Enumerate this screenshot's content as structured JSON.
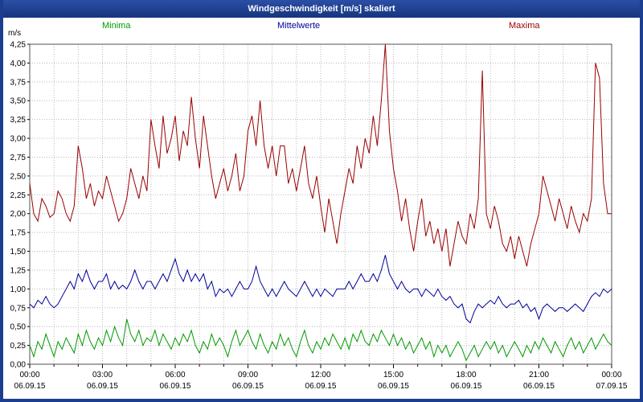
{
  "window": {
    "title": "Windgeschwindigkeit [m/s] skaliert"
  },
  "colors": {
    "titlebar": "#1c3e91",
    "border": "#1c3e91",
    "grid": "#b8b8b8",
    "plot_border": "#505050",
    "axis_text": "#000000",
    "maxima": "#990000",
    "mittelwerte": "#000099",
    "minima": "#009900"
  },
  "chart_data": {
    "type": "line",
    "title": "Windgeschwindigkeit [m/s] skaliert",
    "ylabel": "m/s",
    "ylim": [
      0,
      4.25
    ],
    "ytick_step": 0.25,
    "ytick_labels": [
      "0,00",
      "0,25",
      "0,50",
      "0,75",
      "1,00",
      "1,25",
      "1,50",
      "1,75",
      "2,00",
      "2,25",
      "2,50",
      "2,75",
      "3,00",
      "3,25",
      "3,50",
      "3,75",
      "4,00",
      "4,25"
    ],
    "x_hours": 24,
    "xtick_labels": [
      "00:00",
      "03:00",
      "06:00",
      "09:00",
      "12:00",
      "15:00",
      "18:00",
      "21:00",
      "00:00"
    ],
    "xdate_labels": [
      "06.09.15",
      "06.09.15",
      "06.09.15",
      "06.09.15",
      "06.09.15",
      "06.09.15",
      "06.09.15",
      "06.09.15",
      "07.09.15"
    ],
    "grid": true,
    "legend_position": "top",
    "legend": [
      {
        "name": "Minima",
        "color": "#009900"
      },
      {
        "name": "Mittelwerte",
        "color": "#000099"
      },
      {
        "name": "Maxima",
        "color": "#990000"
      }
    ],
    "series": [
      {
        "name": "Maxima",
        "color": "#990000",
        "values": [
          2.4,
          2.0,
          1.9,
          2.2,
          2.1,
          1.95,
          2.0,
          2.3,
          2.2,
          2.0,
          1.9,
          2.1,
          2.9,
          2.6,
          2.2,
          2.4,
          2.1,
          2.3,
          2.2,
          2.5,
          2.3,
          2.1,
          1.9,
          2.0,
          2.2,
          2.6,
          2.4,
          2.2,
          2.5,
          2.3,
          3.25,
          2.9,
          2.6,
          3.3,
          2.8,
          3.0,
          3.3,
          2.7,
          3.1,
          2.9,
          3.55,
          3.0,
          2.6,
          3.3,
          2.9,
          2.5,
          2.2,
          2.4,
          2.6,
          2.3,
          2.5,
          2.8,
          2.3,
          2.5,
          3.1,
          3.3,
          2.9,
          3.5,
          2.9,
          2.6,
          2.9,
          2.5,
          2.9,
          2.9,
          2.4,
          2.6,
          2.3,
          2.6,
          2.9,
          2.4,
          2.2,
          2.5,
          2.1,
          1.75,
          2.2,
          1.9,
          1.6,
          2.0,
          2.3,
          2.6,
          2.4,
          2.9,
          2.6,
          3.0,
          2.8,
          3.3,
          2.9,
          3.5,
          4.25,
          3.1,
          2.6,
          2.3,
          1.9,
          2.2,
          1.8,
          1.5,
          1.9,
          2.2,
          1.7,
          1.9,
          1.6,
          1.8,
          1.5,
          1.8,
          1.3,
          1.6,
          1.9,
          1.7,
          1.6,
          2.0,
          1.8,
          2.2,
          3.9,
          2.0,
          1.8,
          2.1,
          1.9,
          1.6,
          1.5,
          1.7,
          1.4,
          1.7,
          1.5,
          1.3,
          1.6,
          1.8,
          2.0,
          2.5,
          2.3,
          2.1,
          1.9,
          2.2,
          2.0,
          1.8,
          2.1,
          1.9,
          1.75,
          2.0,
          1.9,
          2.2,
          4.0,
          3.8,
          2.4,
          2.0,
          2.0
        ]
      },
      {
        "name": "Mittelwerte",
        "color": "#000099",
        "values": [
          0.8,
          0.75,
          0.85,
          0.8,
          0.9,
          0.8,
          0.75,
          0.8,
          0.9,
          1.0,
          1.1,
          1.0,
          1.2,
          1.1,
          1.25,
          1.1,
          1.0,
          1.1,
          1.1,
          1.2,
          1.0,
          1.1,
          1.0,
          1.05,
          1.0,
          1.1,
          1.25,
          1.1,
          1.0,
          1.1,
          1.1,
          1.0,
          1.1,
          1.2,
          1.1,
          1.25,
          1.4,
          1.2,
          1.1,
          1.25,
          1.1,
          1.2,
          1.1,
          1.2,
          1.0,
          1.1,
          0.9,
          1.0,
          0.95,
          1.0,
          0.9,
          1.0,
          1.1,
          1.0,
          1.0,
          1.1,
          1.3,
          1.1,
          1.0,
          0.9,
          1.0,
          0.9,
          1.0,
          1.1,
          1.0,
          0.95,
          0.9,
          1.0,
          1.1,
          1.0,
          0.9,
          1.0,
          0.9,
          1.0,
          0.95,
          0.9,
          1.0,
          1.0,
          1.0,
          1.1,
          1.0,
          1.1,
          1.2,
          1.1,
          1.1,
          1.2,
          1.1,
          1.25,
          1.45,
          1.2,
          1.1,
          1.0,
          1.1,
          1.0,
          0.95,
          1.0,
          1.0,
          0.9,
          1.0,
          0.95,
          0.9,
          1.0,
          0.9,
          0.85,
          0.9,
          0.8,
          0.75,
          0.8,
          0.6,
          0.55,
          0.7,
          0.8,
          0.75,
          0.8,
          0.85,
          0.8,
          0.9,
          0.8,
          0.75,
          0.8,
          0.8,
          0.85,
          0.75,
          0.8,
          0.7,
          0.75,
          0.6,
          0.75,
          0.8,
          0.75,
          0.7,
          0.75,
          0.75,
          0.7,
          0.75,
          0.8,
          0.75,
          0.7,
          0.8,
          0.9,
          0.95,
          0.9,
          1.0,
          0.95,
          1.0
        ]
      },
      {
        "name": "Minima",
        "color": "#009900",
        "values": [
          0.25,
          0.1,
          0.3,
          0.2,
          0.4,
          0.25,
          0.1,
          0.3,
          0.2,
          0.35,
          0.25,
          0.15,
          0.4,
          0.25,
          0.45,
          0.3,
          0.2,
          0.35,
          0.25,
          0.45,
          0.3,
          0.5,
          0.35,
          0.25,
          0.6,
          0.4,
          0.3,
          0.45,
          0.25,
          0.35,
          0.3,
          0.45,
          0.25,
          0.4,
          0.3,
          0.2,
          0.35,
          0.25,
          0.4,
          0.3,
          0.45,
          0.25,
          0.15,
          0.3,
          0.2,
          0.4,
          0.25,
          0.35,
          0.25,
          0.1,
          0.3,
          0.45,
          0.25,
          0.35,
          0.45,
          0.3,
          0.2,
          0.4,
          0.25,
          0.15,
          0.3,
          0.2,
          0.4,
          0.25,
          0.35,
          0.2,
          0.1,
          0.3,
          0.45,
          0.25,
          0.15,
          0.3,
          0.2,
          0.35,
          0.25,
          0.4,
          0.3,
          0.2,
          0.35,
          0.2,
          0.4,
          0.3,
          0.45,
          0.3,
          0.25,
          0.4,
          0.3,
          0.45,
          0.35,
          0.25,
          0.4,
          0.25,
          0.35,
          0.2,
          0.3,
          0.15,
          0.25,
          0.35,
          0.2,
          0.3,
          0.1,
          0.25,
          0.15,
          0.25,
          0.1,
          0.2,
          0.3,
          0.2,
          0.05,
          0.15,
          0.25,
          0.1,
          0.2,
          0.3,
          0.2,
          0.3,
          0.15,
          0.25,
          0.1,
          0.2,
          0.3,
          0.2,
          0.1,
          0.25,
          0.15,
          0.3,
          0.2,
          0.35,
          0.25,
          0.15,
          0.3,
          0.2,
          0.1,
          0.25,
          0.35,
          0.2,
          0.3,
          0.15,
          0.25,
          0.35,
          0.2,
          0.3,
          0.4,
          0.3,
          0.25
        ]
      }
    ]
  }
}
